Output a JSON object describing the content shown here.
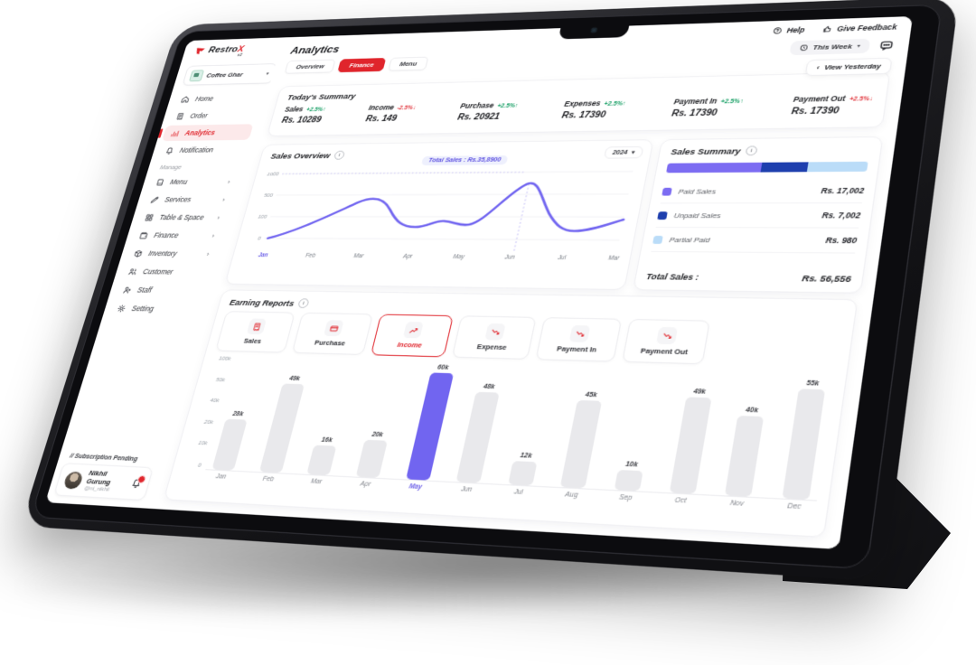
{
  "brand": {
    "name": "Restro",
    "accent_letter": "X",
    "version": "v2"
  },
  "topbar": {
    "help_label": "Help",
    "feedback_label": "Give Feedback",
    "period_label": "This Week"
  },
  "header": {
    "title": "Analytics",
    "tabs": [
      "Overview",
      "Finance",
      "Menu"
    ],
    "active_tab": "Finance",
    "back_chevron": "‹",
    "view_yesterday_label": "View Yesterday"
  },
  "restaurant": {
    "name": "Coffee Ghar"
  },
  "sidebar": {
    "items": [
      {
        "label": "Home"
      },
      {
        "label": "Order"
      },
      {
        "label": "Analytics",
        "active": true
      },
      {
        "label": "Notification"
      },
      {
        "label": "Menu",
        "chevron": true
      },
      {
        "label": "Services",
        "chevron": true
      },
      {
        "label": "Table & Space",
        "chevron": true
      },
      {
        "label": "Finance",
        "chevron": true
      },
      {
        "label": "Inventory",
        "chevron": true
      },
      {
        "label": "Customer"
      },
      {
        "label": "Staff"
      },
      {
        "label": "Setting"
      }
    ],
    "section_label": "Manage",
    "subscription_note": "// Subscription Pending",
    "user": {
      "name": "Nikhil Gurung",
      "handle": "@ni_nikhil"
    }
  },
  "summary": {
    "title": "Today's Summary",
    "metrics": [
      {
        "label": "Sales",
        "change": "+2.5%",
        "arrow": "↑",
        "direction": "up",
        "value": "Rs. 10289"
      },
      {
        "label": "Income",
        "change": "-2.5%",
        "arrow": "↓",
        "direction": "down",
        "value": "Rs. 149"
      },
      {
        "label": "Purchase",
        "change": "+2.5%",
        "arrow": "↑",
        "direction": "up",
        "value": "Rs. 20921"
      },
      {
        "label": "Expenses",
        "change": "+2.5%",
        "arrow": "↑",
        "direction": "up",
        "value": "Rs. 17390"
      },
      {
        "label": "Payment In",
        "change": "+2.5%",
        "arrow": "↑",
        "direction": "up",
        "value": "Rs. 17390"
      },
      {
        "label": "Payment Out",
        "change": "+2.5%",
        "arrow": "↓",
        "direction": "down",
        "value": "Rs. 17390"
      }
    ]
  },
  "sales_overview": {
    "title": "Sales Overview",
    "year": "2024"
  },
  "sales_summary": {
    "title": "Sales Summary"
  },
  "earning_reports": {
    "title": "Earning Reports",
    "filters": [
      "Sales",
      "Purchase",
      "Income",
      "Expense",
      "Payment In",
      "Payment Out"
    ],
    "active_filter": "Income"
  },
  "colors": {
    "brand_red": "#e0252c",
    "purple": "#7165f0",
    "paid_purple": "#7c6cf2",
    "dark_blue": "#1e3fae",
    "light_blue": "#badcf8",
    "green": "#149e63",
    "down_red": "#e23c43",
    "bar_gray": "#e9e9ec"
  },
  "chart_data": [
    {
      "type": "line",
      "title": "Sales Overview",
      "x": [
        "Jan",
        "Feb",
        "Mar",
        "Apr",
        "May",
        "Jun",
        "Jul",
        "Mar"
      ],
      "values": [
        0,
        300,
        560,
        170,
        210,
        720,
        130,
        210
      ],
      "y_ticks": [
        "1000",
        "500",
        "100",
        "0"
      ],
      "ylim": [
        0,
        1000
      ],
      "tooltip": {
        "text": "Total Sales : Rs.35,8900",
        "at": "Jun"
      },
      "highlighted_x": "Jan",
      "year": "2024",
      "line_color": "#7165f0",
      "grid": true,
      "legend_position": "none"
    },
    {
      "type": "bar",
      "subtype": "horizontal-stacked",
      "title": "Sales Summary",
      "segments": [
        {
          "name": "Paid Sales",
          "value": "Rs. 17,002",
          "pct": 48,
          "color": "#7c6cf2"
        },
        {
          "name": "Unpaid Sales",
          "value": "Rs. 7,002",
          "pct": 23,
          "color": "#1e3fae"
        },
        {
          "name": "Partial Paid",
          "value": "Rs. 980",
          "pct": 29,
          "color": "#badcf8"
        }
      ],
      "total": {
        "label": "Total Sales :",
        "value": "Rs. 56,556"
      }
    },
    {
      "type": "bar",
      "title": "Earning Reports — Income",
      "categories": [
        "Jan",
        "Feb",
        "Mar",
        "Apr",
        "May",
        "Jun",
        "Jul",
        "Aug",
        "Sep",
        "Oct",
        "Nov",
        "Dec"
      ],
      "values": [
        28,
        49,
        16,
        20,
        60,
        48,
        12,
        45,
        10,
        49,
        40,
        55
      ],
      "value_labels": [
        "28k",
        "49k",
        "16k",
        "20k",
        "60k",
        "48k",
        "12k",
        "45k",
        "10k",
        "49k",
        "40k",
        "55k"
      ],
      "unit": "k",
      "ymax": 60,
      "y_ticks": [
        "100k",
        "50k",
        "40k",
        "20k",
        "10k",
        "0"
      ],
      "highlight": "May",
      "highlight_color": "#7165f0",
      "bar_color": "#e9e9ec",
      "grid": false,
      "legend_position": "none"
    }
  ]
}
